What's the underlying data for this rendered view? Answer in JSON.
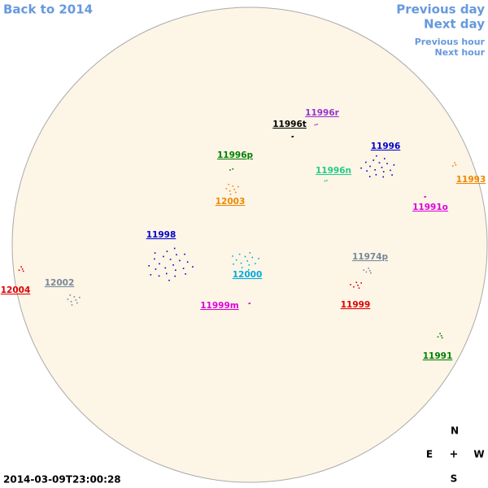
{
  "navigation": {
    "back": "Back to 2014",
    "previous_day": "Previous day",
    "next_day": "Next day",
    "previous_hour": "Previous hour",
    "next_hour": "Next hour"
  },
  "timestamp": "2014-03-09T23:00:28",
  "compass": {
    "north": "N",
    "east": "E",
    "center": "+",
    "west": "W",
    "south": "S"
  },
  "regions": [
    {
      "label": "11996r",
      "color": "#9933cc"
    },
    {
      "label": "11996t",
      "color": "#000000"
    },
    {
      "label": "11996p",
      "color": "#008000"
    },
    {
      "label": "11996",
      "color": "#0000cc"
    },
    {
      "label": "11996n",
      "color": "#22cc88"
    },
    {
      "label": "11993",
      "color": "#ee8800"
    },
    {
      "label": "12003",
      "color": "#ee8800"
    },
    {
      "label": "11991o",
      "color": "#dd00dd"
    },
    {
      "label": "11998",
      "color": "#0000cc"
    },
    {
      "label": "11974p",
      "color": "#778899"
    },
    {
      "label": "12000",
      "color": "#00aadd"
    },
    {
      "label": "12002",
      "color": "#778899"
    },
    {
      "label": "12004",
      "color": "#dd0000"
    },
    {
      "label": "11999m",
      "color": "#dd00dd"
    },
    {
      "label": "11999",
      "color": "#dd0000"
    },
    {
      "label": "11991",
      "color": "#008000"
    }
  ]
}
